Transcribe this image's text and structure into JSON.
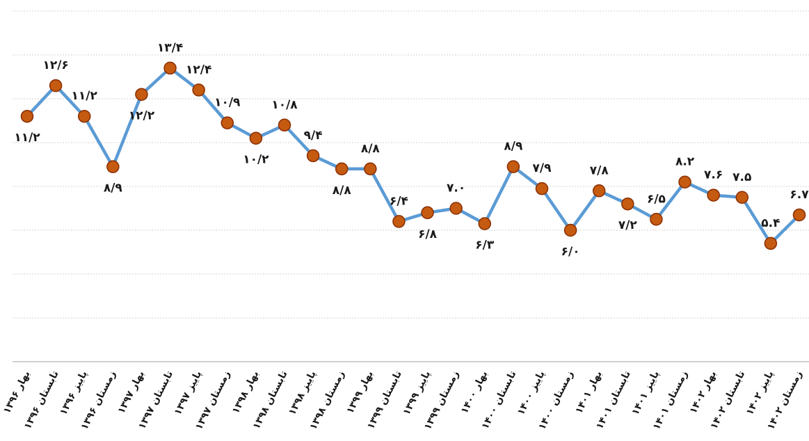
{
  "chart_data": {
    "type": "line",
    "categories": [
      "بهار ۱۳۹۶",
      "تابستان ۱۳۹۶",
      "پاییز ۱۳۹۶",
      "زمستان ۱۳۹۶",
      "بهار ۱۳۹۷",
      "تابستان ۱۳۹۷",
      "پاییز ۱۳۹۷",
      "زمستان ۱۳۹۷",
      "بهار ۱۳۹۸",
      "تابستان ۱۳۹۸",
      "پاییز ۱۳۹۸",
      "زمستان ۱۳۹۸",
      "بهار ۱۳۹۹",
      "تابستان ۱۳۹۹",
      "پاییز ۱۳۹۹",
      "زمستان ۱۳۹۹",
      "بهار ۱۴۰۰",
      "تابستان ۱۴۰۰",
      "پاییز ۱۴۰۰",
      "زمستان ۱۴۰۰",
      "بهار ۱۴۰۱",
      "تابستان ۱۴۰۱",
      "پاییز ۱۴۰۱",
      "زمستان ۱۴۰۱",
      "بهار ۱۴۰۲",
      "تابستان ۱۴۰۲",
      "پاییز ۱۴۰۲",
      "زمستان ۱۴۰۲"
    ],
    "values": [
      11.2,
      12.6,
      11.2,
      8.9,
      12.2,
      13.4,
      12.4,
      10.9,
      10.2,
      10.8,
      9.4,
      8.8,
      8.8,
      6.4,
      6.8,
      7.0,
      6.3,
      8.9,
      7.9,
      6.0,
      7.8,
      7.2,
      6.5,
      8.2,
      7.6,
      7.5,
      5.4,
      6.7
    ],
    "value_labels": [
      "۱۱/۲",
      "۱۲/۶",
      "۱۱/۲",
      "۸/۹",
      "۱۲/۲",
      "۱۳/۴",
      "۱۲/۴",
      "۱۰/۹",
      "۱۰/۲",
      "۱۰/۸",
      "۹/۴",
      "۸/۸",
      "۸/۸",
      "۶/۴",
      "۶/۸",
      "۷.۰",
      "۶/۳",
      "۸/۹",
      "۷/۹",
      "۶/۰",
      "۷/۸",
      "۷/۲",
      "۶/۵",
      "۸.۲",
      "۷.۶",
      "۷.۵",
      "۵.۴",
      "۶.۷"
    ],
    "color": "#5b9bd5",
    "marker_color": "#c55a11",
    "ylim": [
      0,
      16
    ],
    "yticks": [
      0,
      2,
      4,
      6,
      8,
      10,
      12,
      14,
      16
    ],
    "grid": true
  }
}
